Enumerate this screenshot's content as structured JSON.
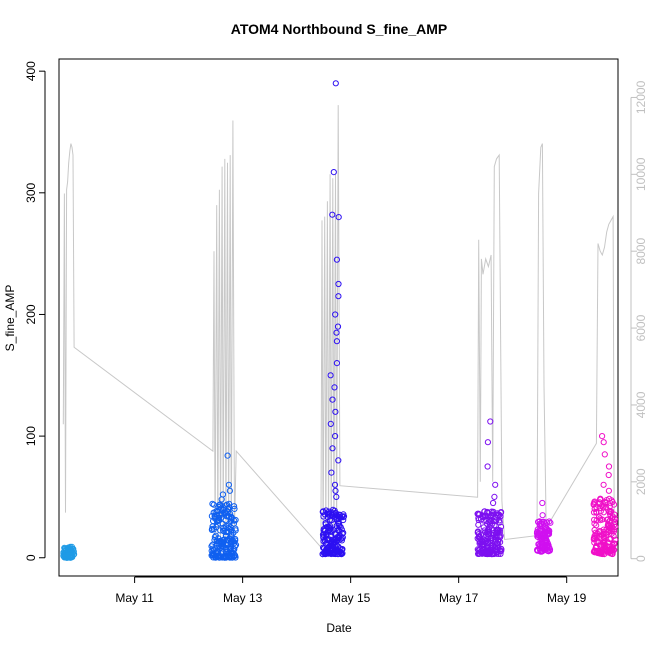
{
  "chart_data": {
    "type": "scatter",
    "title": "ATOM4 Northbound S_fine_AMP",
    "xlabel": "Date",
    "ylabel": "S_fine_AMP",
    "xlim_days": [
      9.6,
      19.95
    ],
    "ylim": [
      -15,
      410
    ],
    "x_ticks": [
      {
        "day": 11,
        "label": "May 11"
      },
      {
        "day": 13,
        "label": "May 13"
      },
      {
        "day": 15,
        "label": "May 15"
      },
      {
        "day": 17,
        "label": "May 17"
      },
      {
        "day": 19,
        "label": "May 19"
      }
    ],
    "y_ticks": [
      0,
      100,
      200,
      300,
      400
    ],
    "y2_ticks": [
      0,
      2000,
      4000,
      6000,
      8000,
      10000,
      12000
    ],
    "y2lim": [
      -450,
      13000
    ],
    "y2_color": "#c0c0c0",
    "scatter_clusters": [
      {
        "day_start": 9.68,
        "day_end": 9.88,
        "y_min": 0,
        "y_max": 9,
        "color": "#1f9be6",
        "spikes": []
      },
      {
        "day_start": 12.42,
        "day_end": 12.88,
        "y_min": 0,
        "y_max": 45,
        "color": "#1060f0",
        "spikes": [
          60,
          55,
          84,
          52,
          48
        ]
      },
      {
        "day_start": 14.48,
        "day_end": 14.88,
        "y_min": 3,
        "y_max": 40,
        "color": "#2d10f2",
        "spikes": [
          390,
          317,
          282,
          280,
          245,
          225,
          215,
          200,
          190,
          185,
          178,
          160,
          150,
          140,
          130,
          120,
          110,
          100,
          90,
          80,
          70,
          60,
          55,
          50
        ]
      },
      {
        "day_start": 17.35,
        "day_end": 17.8,
        "y_min": 3,
        "y_max": 40,
        "color": "#7d10f0",
        "spikes": [
          112,
          95,
          75,
          60,
          50,
          45
        ]
      },
      {
        "day_start": 18.45,
        "day_end": 18.7,
        "y_min": 5,
        "y_max": 30,
        "color": "#d010f0",
        "spikes": [
          45,
          35
        ]
      },
      {
        "day_start": 19.5,
        "day_end": 19.9,
        "y_min": 3,
        "y_max": 50,
        "color": "#f010c8",
        "spikes": [
          100,
          95,
          85,
          75,
          68,
          60,
          55
        ]
      }
    ],
    "secondary_line": {
      "color": "#c8c8c8",
      "points": [
        [
          9.68,
          3500
        ],
        [
          9.7,
          9500
        ],
        [
          9.72,
          1200
        ],
        [
          9.74,
          9600
        ],
        [
          9.76,
          9800
        ],
        [
          9.78,
          10300
        ],
        [
          9.8,
          10600
        ],
        [
          9.82,
          10800
        ],
        [
          9.84,
          10700
        ],
        [
          9.86,
          10500
        ],
        [
          9.88,
          5500
        ],
        [
          12.45,
          2800
        ],
        [
          12.47,
          8000
        ],
        [
          12.49,
          300
        ],
        [
          12.52,
          9200
        ],
        [
          12.54,
          400
        ],
        [
          12.57,
          9600
        ],
        [
          12.59,
          500
        ],
        [
          12.62,
          10200
        ],
        [
          12.64,
          600
        ],
        [
          12.67,
          10400
        ],
        [
          12.69,
          500
        ],
        [
          12.72,
          10300
        ],
        [
          12.74,
          600
        ],
        [
          12.77,
          10500
        ],
        [
          12.79,
          400
        ],
        [
          12.82,
          11400
        ],
        [
          12.85,
          800
        ],
        [
          12.88,
          2800
        ],
        [
          14.45,
          300
        ],
        [
          14.47,
          8800
        ],
        [
          14.49,
          300
        ],
        [
          14.52,
          8900
        ],
        [
          14.54,
          400
        ],
        [
          14.57,
          9300
        ],
        [
          14.59,
          500
        ],
        [
          14.62,
          10000
        ],
        [
          14.64,
          600
        ],
        [
          14.67,
          9900
        ],
        [
          14.69,
          500
        ],
        [
          14.72,
          10000
        ],
        [
          14.74,
          400
        ],
        [
          14.77,
          11800
        ],
        [
          14.8,
          1900
        ],
        [
          17.35,
          1600
        ],
        [
          17.37,
          8300
        ],
        [
          17.4,
          2000
        ],
        [
          17.42,
          7800
        ],
        [
          17.45,
          7400
        ],
        [
          17.5,
          7800
        ],
        [
          17.55,
          7600
        ],
        [
          17.6,
          7900
        ],
        [
          17.63,
          2000
        ],
        [
          17.66,
          10200
        ],
        [
          17.7,
          10400
        ],
        [
          17.75,
          10500
        ],
        [
          17.8,
          1500
        ],
        [
          17.85,
          500
        ],
        [
          18.45,
          600
        ],
        [
          18.48,
          9500
        ],
        [
          18.52,
          10700
        ],
        [
          18.55,
          10800
        ],
        [
          18.58,
          4500
        ],
        [
          18.62,
          800
        ],
        [
          19.55,
          3000
        ],
        [
          19.58,
          8200
        ],
        [
          19.62,
          8000
        ],
        [
          19.66,
          7900
        ],
        [
          19.7,
          8100
        ],
        [
          19.74,
          8500
        ],
        [
          19.78,
          8700
        ],
        [
          19.82,
          8800
        ],
        [
          19.86,
          8900
        ],
        [
          19.88,
          800
        ]
      ]
    }
  }
}
